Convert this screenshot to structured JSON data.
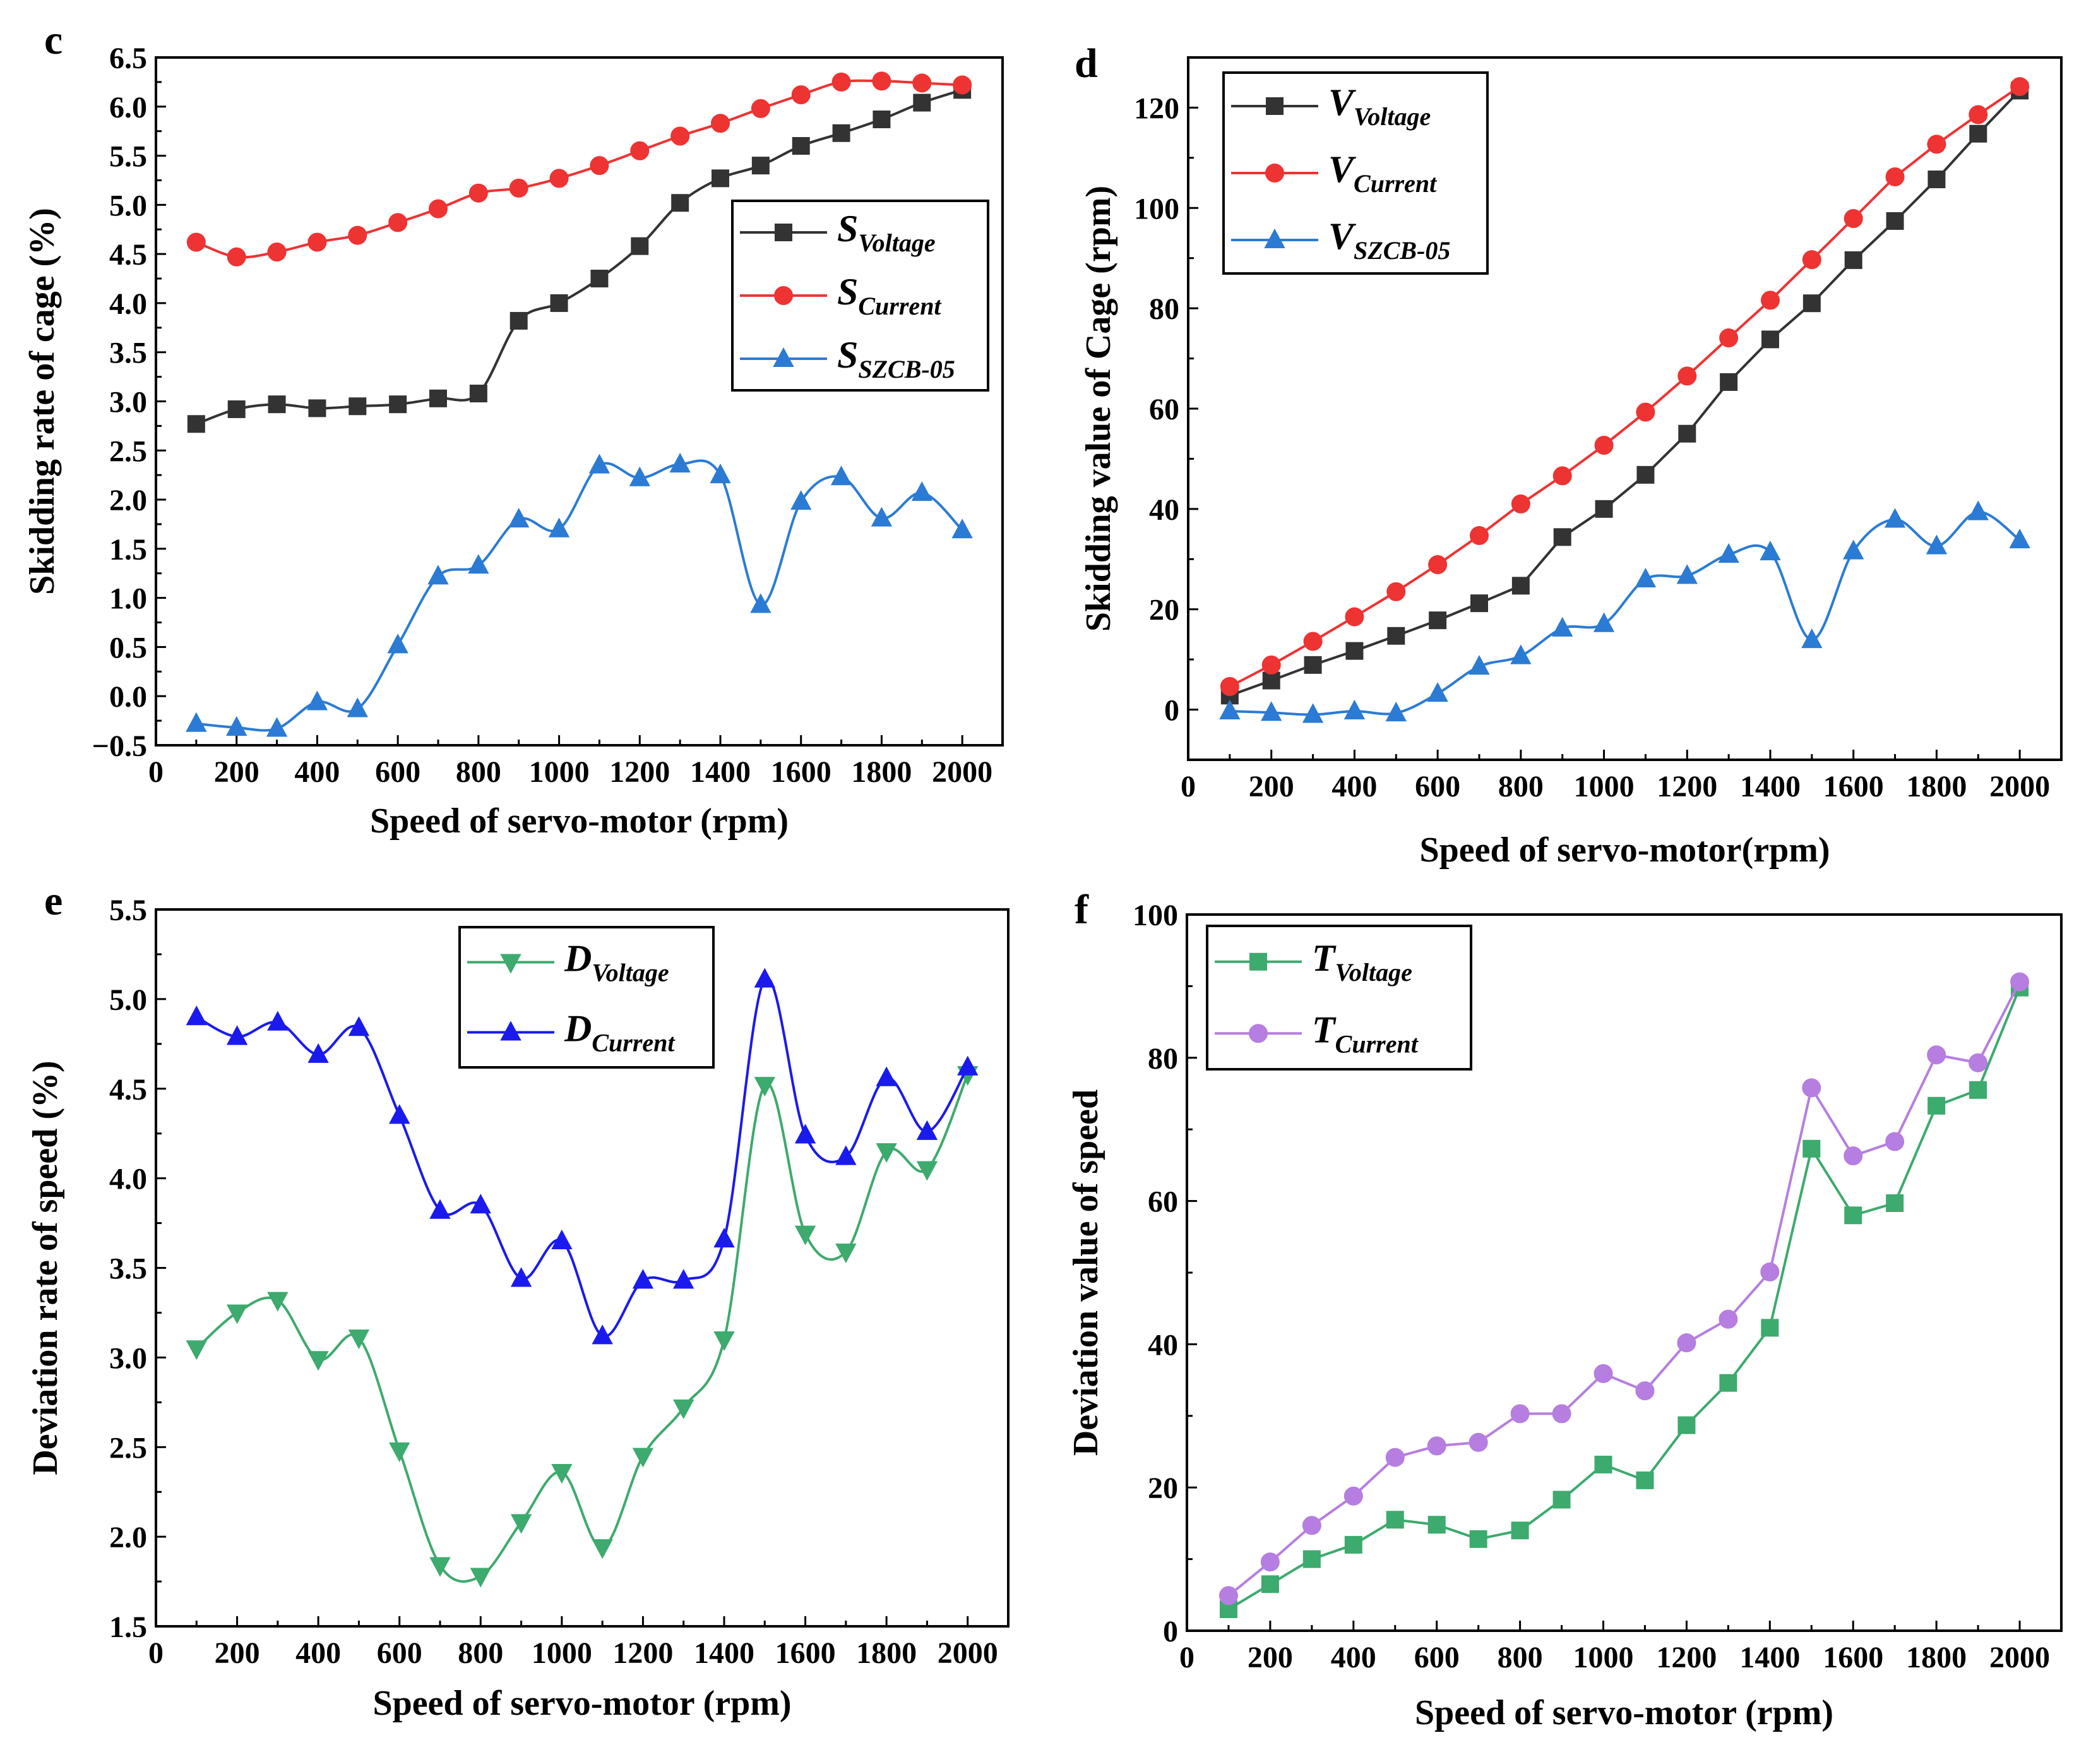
{
  "chart_data": [
    {
      "panel": "c",
      "type": "line",
      "xlabel": "Speed of servo-motor (rpm)",
      "ylabel": "Skidding rate of cage (%)",
      "xlim": [
        0,
        2100
      ],
      "ylim": [
        -0.5,
        6.5
      ],
      "xticks": [
        0,
        200,
        400,
        600,
        800,
        1000,
        1200,
        1400,
        1600,
        1800,
        2000
      ],
      "yticks": [
        -0.5,
        0.0,
        0.5,
        1.0,
        1.5,
        2.0,
        2.5,
        3.0,
        3.5,
        4.0,
        4.5,
        5.0,
        5.5,
        6.0,
        6.5
      ],
      "ytick_labels": [
        "−0.5",
        "0.0",
        "0.5",
        "1.0",
        "1.5",
        "2.0",
        "2.5",
        "3.0",
        "3.5",
        "4.0",
        "4.5",
        "5.0",
        "5.5",
        "6.0",
        "6.5"
      ],
      "legend_position": "middle-right",
      "x": [
        100,
        200,
        300,
        400,
        500,
        600,
        700,
        800,
        900,
        1000,
        1100,
        1200,
        1300,
        1400,
        1500,
        1600,
        1700,
        1800,
        1900,
        2000
      ],
      "series": [
        {
          "name": "S",
          "sub": "Voltage",
          "color": "#333333",
          "marker": "square",
          "values": [
            2.77,
            2.92,
            2.97,
            2.93,
            2.95,
            2.97,
            3.03,
            3.08,
            3.82,
            4.0,
            4.25,
            4.58,
            5.02,
            5.27,
            5.4,
            5.6,
            5.73,
            5.87,
            6.04,
            6.17
          ]
        },
        {
          "name": "S",
          "sub": "Current",
          "color": "#ee3333",
          "marker": "circle",
          "values": [
            4.62,
            4.47,
            4.52,
            4.62,
            4.69,
            4.82,
            4.96,
            5.12,
            5.17,
            5.27,
            5.4,
            5.55,
            5.7,
            5.83,
            5.98,
            6.12,
            6.25,
            6.26,
            6.24,
            6.22
          ]
        },
        {
          "name": "S",
          "sub": "SZCB-05",
          "color": "#2b7bd4",
          "marker": "triangle-up",
          "values": [
            -0.28,
            -0.32,
            -0.33,
            -0.06,
            -0.13,
            0.52,
            1.22,
            1.33,
            1.8,
            1.7,
            2.35,
            2.22,
            2.36,
            2.25,
            0.93,
            1.98,
            2.23,
            1.81,
            2.07,
            1.69
          ]
        }
      ]
    },
    {
      "panel": "d",
      "type": "line",
      "xlabel": "Speed of servo-motor(rpm)",
      "ylabel": "Skidding value of Cage (rpm)",
      "xlim": [
        0,
        2100
      ],
      "ylim": [
        -10,
        130
      ],
      "xticks": [
        0,
        200,
        400,
        600,
        800,
        1000,
        1200,
        1400,
        1600,
        1800,
        2000
      ],
      "yticks": [
        0,
        20,
        40,
        60,
        80,
        100,
        120
      ],
      "ytick_labels": [
        "0",
        "20",
        "40",
        "60",
        "80",
        "100",
        "120"
      ],
      "legend_position": "top-left",
      "x": [
        100,
        200,
        300,
        400,
        500,
        600,
        700,
        800,
        900,
        1000,
        1100,
        1200,
        1300,
        1400,
        1500,
        1600,
        1700,
        1800,
        1900,
        2000
      ],
      "series": [
        {
          "name": "V",
          "sub": "Voltage",
          "color": "#333333",
          "marker": "square",
          "values": [
            2.8,
            5.8,
            8.9,
            11.7,
            14.7,
            17.8,
            21.2,
            24.7,
            34.4,
            40.0,
            46.8,
            55.0,
            65.3,
            73.8,
            81.0,
            89.6,
            97.4,
            105.7,
            114.8,
            123.4
          ]
        },
        {
          "name": "V",
          "sub": "Current",
          "color": "#ee3333",
          "marker": "circle",
          "values": [
            4.6,
            8.9,
            13.6,
            18.5,
            23.5,
            28.9,
            34.7,
            41.0,
            46.6,
            52.7,
            59.3,
            66.5,
            74.1,
            81.6,
            89.7,
            97.9,
            106.2,
            112.7,
            118.6,
            124.2
          ]
        },
        {
          "name": "V",
          "sub": "SZCB-05",
          "color": "#2b7bd4",
          "marker": "triangle-up",
          "values": [
            -0.3,
            -0.6,
            -1.0,
            -0.3,
            -0.7,
            3.2,
            8.6,
            10.7,
            16.2,
            17.1,
            26.0,
            26.7,
            30.9,
            31.4,
            13.9,
            31.6,
            37.9,
            32.6,
            39.4,
            33.8
          ]
        }
      ]
    },
    {
      "panel": "e",
      "type": "line",
      "xlabel": "Speed of servo-motor (rpm)",
      "ylabel": "Deviation rate of speed (%)",
      "xlim": [
        0,
        2100
      ],
      "ylim": [
        1.5,
        5.5
      ],
      "xticks": [
        0,
        200,
        400,
        600,
        800,
        1000,
        1200,
        1400,
        1600,
        1800,
        2000
      ],
      "yticks": [
        1.5,
        2.0,
        2.5,
        3.0,
        3.5,
        4.0,
        4.5,
        5.0,
        5.5
      ],
      "ytick_labels": [
        "1.5",
        "2.0",
        "2.5",
        "3.0",
        "3.5",
        "4.0",
        "4.5",
        "5.0",
        "5.5"
      ],
      "legend_position": "top-center",
      "x": [
        100,
        200,
        300,
        400,
        500,
        600,
        700,
        800,
        900,
        1000,
        1100,
        1200,
        1300,
        1400,
        1500,
        1600,
        1700,
        1800,
        1900,
        2000
      ],
      "series": [
        {
          "name": "D",
          "sub": "Voltage",
          "color": "#3daa6e",
          "marker": "triangle-down",
          "values": [
            3.05,
            3.25,
            3.32,
            2.99,
            3.11,
            2.48,
            1.84,
            1.78,
            2.08,
            2.36,
            1.94,
            2.45,
            2.72,
            3.1,
            4.52,
            3.69,
            3.59,
            4.15,
            4.05,
            4.58
          ]
        },
        {
          "name": "D",
          "sub": "Current",
          "color": "#1a1aee",
          "marker": "triangle-up",
          "values": [
            4.9,
            4.79,
            4.87,
            4.69,
            4.84,
            4.35,
            3.82,
            3.85,
            3.44,
            3.65,
            3.12,
            3.43,
            3.43,
            3.66,
            5.11,
            4.24,
            4.12,
            4.56,
            4.26,
            4.62
          ]
        }
      ]
    },
    {
      "panel": "f",
      "type": "line",
      "xlabel": "Speed of servo-motor (rpm)",
      "ylabel": "Deviation value of speed",
      "xlim": [
        0,
        2100
      ],
      "ylim": [
        0,
        100
      ],
      "xticks": [
        0,
        200,
        400,
        600,
        800,
        1000,
        1200,
        1400,
        1600,
        1800,
        2000
      ],
      "yticks": [
        0,
        20,
        40,
        60,
        80,
        100
      ],
      "ytick_labels": [
        "0",
        "20",
        "40",
        "60",
        "80",
        "100"
      ],
      "legend_position": "top-left",
      "x": [
        100,
        200,
        300,
        400,
        500,
        600,
        700,
        800,
        900,
        1000,
        1100,
        1200,
        1300,
        1400,
        1500,
        1600,
        1700,
        1800,
        1900,
        2000
      ],
      "series": [
        {
          "name": "T",
          "sub": "Voltage",
          "color": "#3daa6e",
          "marker": "square",
          "values": [
            3.0,
            6.5,
            10.0,
            12.0,
            15.5,
            14.8,
            12.8,
            14.0,
            18.3,
            23.2,
            21.0,
            28.7,
            34.6,
            42.3,
            67.3,
            58.0,
            59.7,
            73.3,
            75.5,
            89.8
          ]
        },
        {
          "name": "T",
          "sub": "Current",
          "color": "#b57ee0",
          "marker": "circle",
          "values": [
            4.9,
            9.6,
            14.7,
            18.8,
            24.2,
            25.8,
            26.3,
            30.3,
            30.3,
            35.9,
            33.5,
            40.2,
            43.5,
            50.1,
            75.8,
            66.3,
            68.3,
            80.4,
            79.3,
            90.6
          ]
        }
      ]
    }
  ]
}
